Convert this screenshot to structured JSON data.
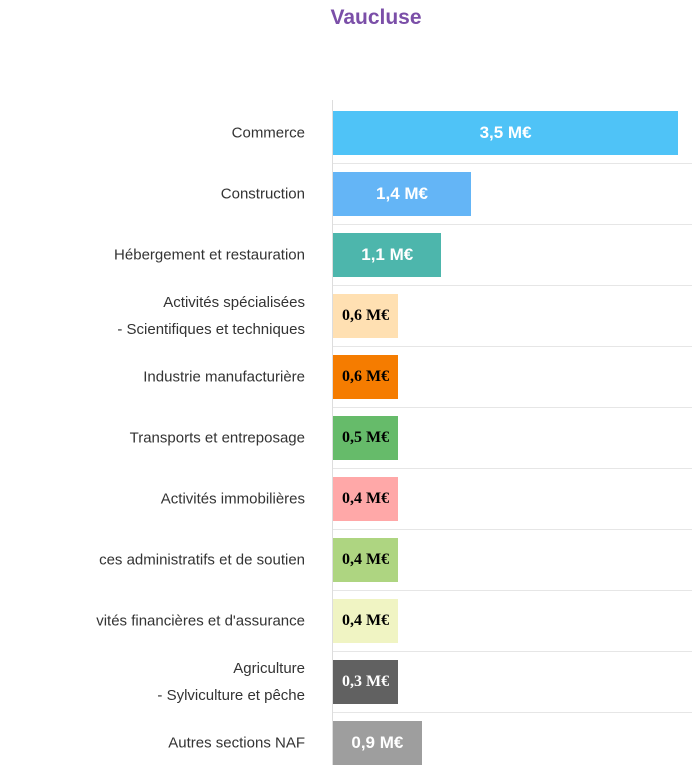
{
  "chart_data": {
    "type": "bar",
    "orientation": "horizontal",
    "title": "Vaucluse",
    "categories": [
      "Commerce",
      "Construction",
      "Hébergement et restauration",
      "Activités spécialisées\n- Scientifiques et techniques",
      "Industrie manufacturière",
      "Transports et entreposage",
      "Activités immobilières",
      "ces administratifs et de soutien",
      "vités financières et d'assurance",
      "Agriculture\n- Sylviculture et pêche",
      "Autres sections NAF"
    ],
    "values": [
      3.5,
      1.4,
      1.1,
      0.6,
      0.6,
      0.5,
      0.4,
      0.4,
      0.4,
      0.3,
      0.9
    ],
    "value_labels": [
      "3,5 M€",
      "1,4 M€",
      "1,1 M€",
      "0,6 M€",
      "0,6 M€",
      "0,5 M€",
      "0,4 M€",
      "0,4 M€",
      "0,4 M€",
      "0,3 M€",
      "0,9 M€"
    ],
    "colors": [
      "#4fc3f7",
      "#64b5f6",
      "#4db6ac",
      "#ffe0b2",
      "#f57c00",
      "#66bb6a",
      "#ffa8a8",
      "#aed581",
      "#f0f4c3",
      "#616161",
      "#9e9e9e"
    ],
    "label_colors": [
      "#ffffff",
      "#ffffff",
      "#ffffff",
      "#000000",
      "#000000",
      "#000000",
      "#000000",
      "#000000",
      "#000000",
      "#ffffff",
      "#ffffff"
    ],
    "xlim": [
      0,
      3.6
    ]
  }
}
